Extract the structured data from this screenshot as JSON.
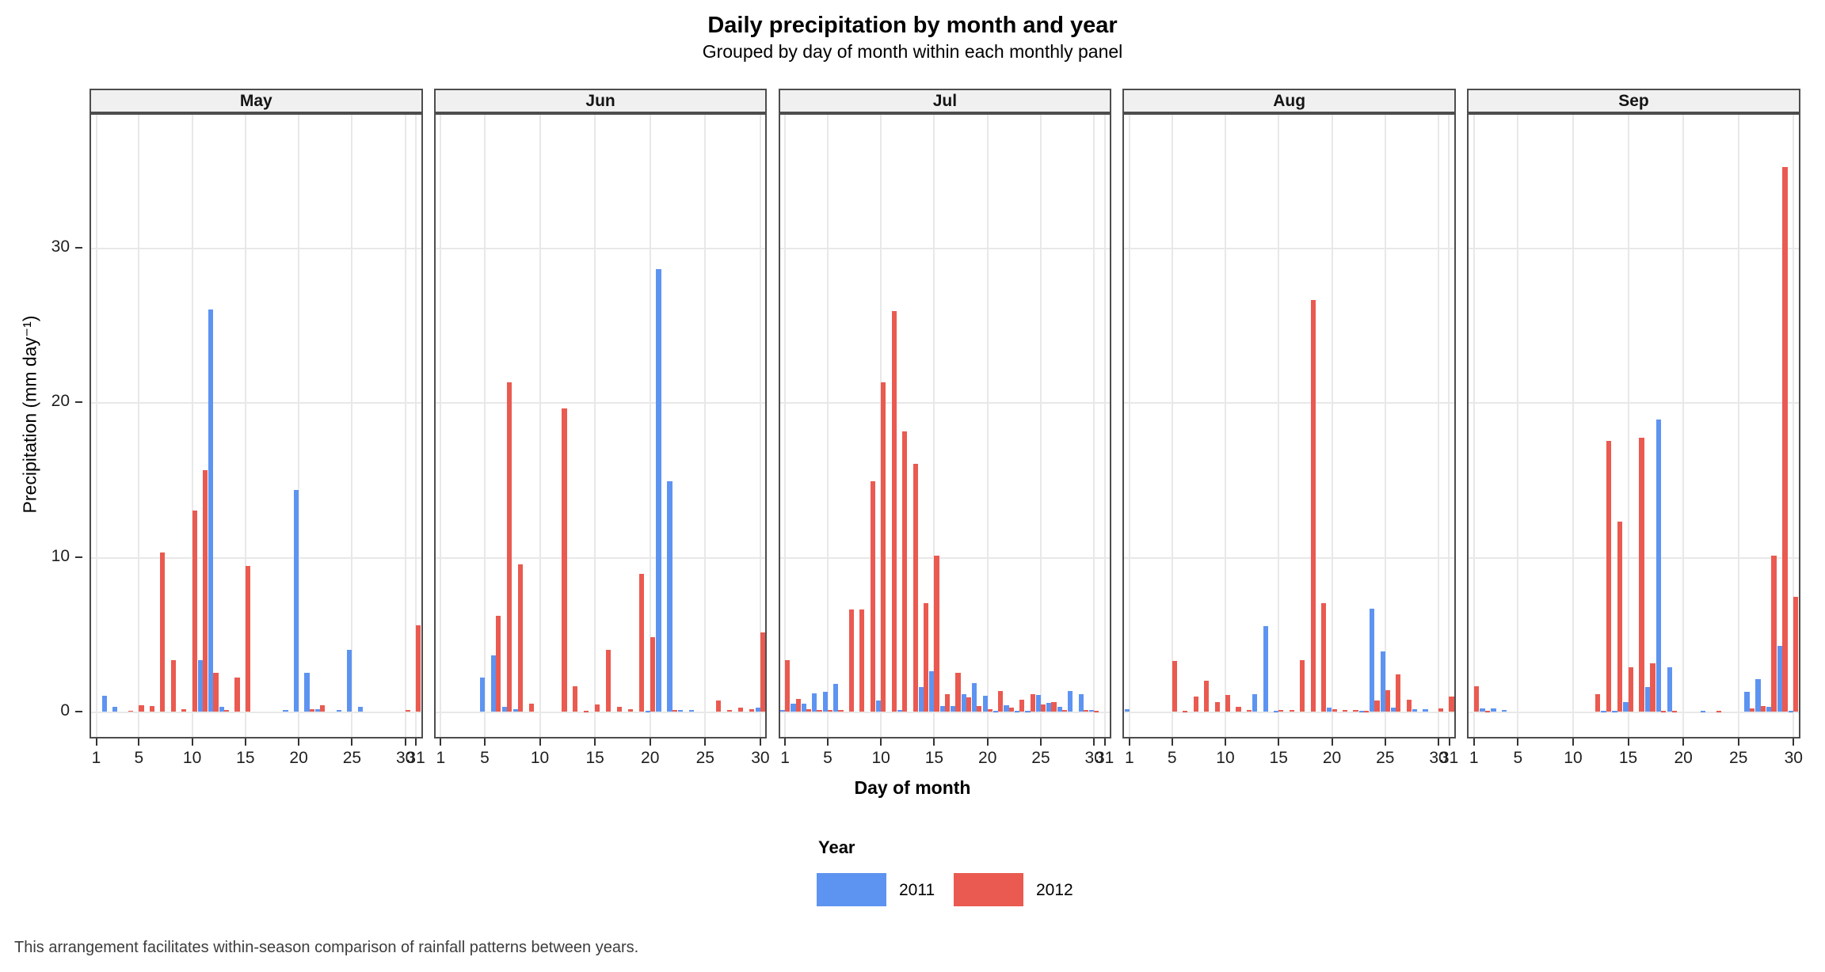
{
  "chart_data": {
    "type": "bar",
    "title": "Daily precipitation by month and year",
    "subtitle": "Grouped by day of month within each monthly panel",
    "ylabel": "Precipitation (mm day⁻¹)",
    "xlabel": "Day of month",
    "caption": "This arrangement facilitates within-season comparison of rainfall patterns between years.",
    "legend": {
      "title": "Year",
      "series": [
        {
          "name": "2011",
          "color": "#5e94f1"
        },
        {
          "name": "2012",
          "color": "#ea5a50"
        }
      ]
    },
    "ylim": [
      0,
      38.5
    ],
    "yticks": [
      0,
      10,
      20,
      30
    ],
    "grid": "major-only",
    "legend_position": "bottom",
    "panels": [
      {
        "month": "May",
        "days": 31,
        "xticks": [
          1,
          5,
          10,
          15,
          20,
          25,
          30,
          31
        ],
        "values_2011": {
          "2": 1.0,
          "3": 0.3,
          "11": 3.3,
          "12": 26.0,
          "13": 0.3,
          "19": 0.1,
          "20": 14.3,
          "21": 2.5,
          "22": 0.15,
          "24": 0.1,
          "25": 4.0,
          "26": 0.3
        },
        "values_2012": {
          "4": 0.06,
          "5": 0.4,
          "6": 0.35,
          "7": 10.3,
          "8": 3.3,
          "9": 0.15,
          "10": 13.0,
          "11": 15.6,
          "12": 2.5,
          "13": 0.1,
          "14": 2.2,
          "15": 9.4,
          "21": 0.15,
          "22": 0.4,
          "30": 0.1,
          "31": 5.6
        }
      },
      {
        "month": "Jun",
        "days": 30,
        "xticks": [
          1,
          5,
          10,
          15,
          20,
          25,
          30
        ],
        "values_2011": {
          "5": 2.2,
          "6": 3.65,
          "7": 0.3,
          "8": 0.15,
          "20": 0.05,
          "21": 28.6,
          "22": 14.9,
          "23": 0.1,
          "24": 0.1,
          "30": 0.25
        },
        "values_2012": {
          "6": 6.2,
          "7": 21.3,
          "8": 9.5,
          "9": 0.5,
          "12": 19.6,
          "13": 1.65,
          "14": 0.05,
          "15": 0.45,
          "16": 4.0,
          "17": 0.3,
          "18": 0.15,
          "19": 8.9,
          "20": 4.8,
          "22": 0.1,
          "26": 0.7,
          "27": 0.1,
          "28": 0.25,
          "29": 0.15,
          "30": 5.1
        }
      },
      {
        "month": "Jul",
        "days": 31,
        "xticks": [
          1,
          5,
          10,
          15,
          20,
          25,
          30,
          31
        ],
        "values_2011": {
          "1": 0.1,
          "2": 0.5,
          "3": 0.5,
          "4": 1.2,
          "5": 1.3,
          "6": 1.8,
          "10": 0.7,
          "12": 0.1,
          "14": 1.6,
          "15": 2.6,
          "16": 0.35,
          "17": 0.35,
          "18": 1.15,
          "19": 1.85,
          "20": 1.0,
          "21": 0.05,
          "22": 0.4,
          "23": 0.05,
          "24": 0.05,
          "25": 1.05,
          "26": 0.55,
          "27": 0.3,
          "28": 1.35,
          "29": 1.15,
          "30": 0.1
        },
        "values_2012": {
          "1": 3.3,
          "2": 0.8,
          "3": 0.15,
          "4": 0.1,
          "5": 0.1,
          "6": 0.1,
          "7": 6.6,
          "8": 6.6,
          "9": 14.9,
          "10": 21.3,
          "11": 25.9,
          "12": 18.1,
          "13": 16.0,
          "14": 7.0,
          "15": 10.1,
          "16": 1.15,
          "17": 2.5,
          "18": 0.9,
          "19": 0.35,
          "20": 0.13,
          "21": 1.35,
          "22": 0.25,
          "23": 0.75,
          "24": 1.15,
          "25": 0.45,
          "26": 0.6,
          "27": 0.08,
          "29": 0.08,
          "30": 0.05
        }
      },
      {
        "month": "Aug",
        "days": 31,
        "xticks": [
          1,
          5,
          10,
          15,
          20,
          25,
          30,
          31
        ],
        "values_2011": {
          "1": 0.15,
          "13": 1.15,
          "14": 5.5,
          "15": 0.05,
          "20": 0.25,
          "23": 0.05,
          "24": 6.65,
          "25": 3.9,
          "26": 0.25,
          "28": 0.15,
          "29": 0.15
        },
        "values_2012": {
          "5": 3.25,
          "6": 0.05,
          "7": 0.95,
          "8": 2.0,
          "9": 0.6,
          "10": 1.05,
          "11": 0.3,
          "12": 0.1,
          "15": 0.08,
          "16": 0.08,
          "17": 3.3,
          "18": 26.6,
          "19": 7.0,
          "20": 0.15,
          "21": 0.1,
          "22": 0.1,
          "23": 0.05,
          "24": 0.7,
          "25": 1.4,
          "26": 2.4,
          "27": 0.75,
          "30": 0.2,
          "31": 0.95
        }
      },
      {
        "month": "Sep",
        "days": 30,
        "xticks": [
          1,
          5,
          10,
          15,
          20,
          25,
          30
        ],
        "values_2011": {
          "2": 0.2,
          "3": 0.2,
          "4": 0.1,
          "13": 0.05,
          "14": 0.05,
          "15": 0.6,
          "17": 1.6,
          "18": 18.9,
          "19": 2.85,
          "22": 0.05,
          "26": 1.3,
          "27": 2.1,
          "28": 0.3,
          "29": 4.25,
          "30": 0.05
        },
        "values_2012": {
          "1": 1.65,
          "2": 0.05,
          "12": 1.15,
          "13": 17.5,
          "14": 12.3,
          "15": 2.85,
          "16": 17.7,
          "17": 3.1,
          "18": 0.05,
          "19": 0.05,
          "23": 0.05,
          "26": 0.2,
          "27": 0.35,
          "28": 10.1,
          "29": 35.2,
          "30": 7.4
        }
      }
    ]
  }
}
